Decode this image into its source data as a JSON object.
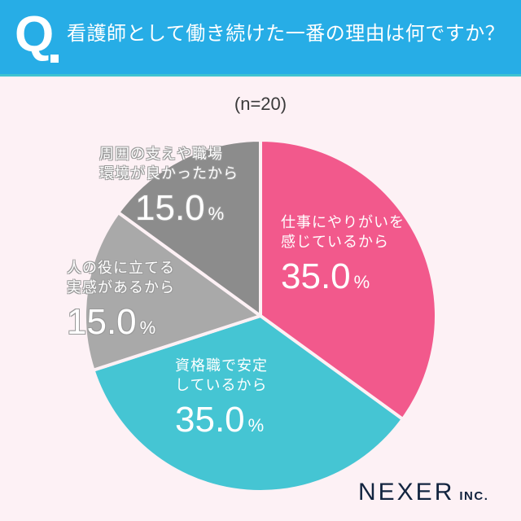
{
  "header": {
    "q_mark": "Q",
    "question": "看護師として働き続けた一番の理由は何ですか？",
    "background_color": "#27ade6"
  },
  "sample": "(n=20)",
  "slices": [
    {
      "label_line1": "仕事にやりがいを",
      "label_line2": "感じているから",
      "value": "35.0",
      "unit": "%",
      "color": "#f2598c"
    },
    {
      "label_line1": "資格職で安定",
      "label_line2": "しているから",
      "value": "35.0",
      "unit": "%",
      "color": "#45c5d3"
    },
    {
      "label_line1": "人の役に立てる",
      "label_line2": "実感があるから",
      "value": "15.0",
      "unit": "%",
      "color": "#a9a9a9"
    },
    {
      "label_line1": "周囲の支えや職場",
      "label_line2": "環境が良かったから",
      "value": "15.0",
      "unit": "%",
      "color": "#8c8c8c"
    }
  ],
  "logo": {
    "main": "NEXER",
    "sub": "INC."
  },
  "chart_data": {
    "type": "pie",
    "title": "看護師として働き続けた一番の理由は何ですか？",
    "subtitle": "(n=20)",
    "categories": [
      "仕事にやりがいを感じているから",
      "資格職で安定しているから",
      "人の役に立てる実感があるから",
      "周囲の支えや職場環境が良かったから"
    ],
    "values": [
      35.0,
      35.0,
      15.0,
      15.0
    ],
    "unit": "%",
    "colors": [
      "#f2598c",
      "#45c5d3",
      "#a9a9a9",
      "#8c8c8c"
    ],
    "start_angle": "12 o'clock, clockwise",
    "legend": "inline labels on slices"
  }
}
